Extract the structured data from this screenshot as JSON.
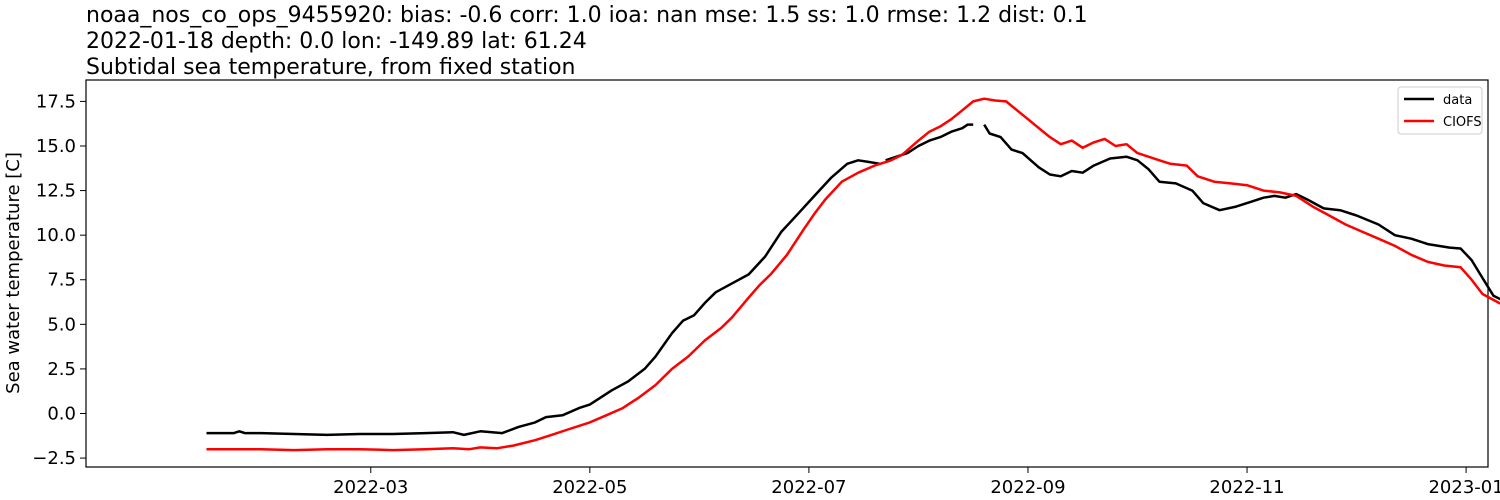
{
  "chart_data": {
    "type": "line",
    "title_lines": [
      "noaa_nos_co_ops_9455920: bias: -0.6  corr: 1.0  ioa: nan  mse: 1.5  ss: 1.0  rmse: 1.2  dist: 0.1",
      "2022-01-18 depth: 0.0 lon: -149.89 lat: 61.24",
      "Subtidal sea temperature, from fixed station"
    ],
    "xlabel": "",
    "ylabel": "Sea water temperature [C]",
    "x_ticks": [
      {
        "month": 2,
        "label": "2022-03"
      },
      {
        "month": 4,
        "label": "2022-05"
      },
      {
        "month": 6,
        "label": "2022-07"
      },
      {
        "month": 8,
        "label": "2022-09"
      },
      {
        "month": 10,
        "label": "2022-11"
      },
      {
        "month": 12,
        "label": "2023-01"
      }
    ],
    "x_range_months": [
      -0.6,
      12.2
    ],
    "y_ticks": [
      -2.5,
      0.0,
      2.5,
      5.0,
      7.5,
      10.0,
      12.5,
      15.0,
      17.5
    ],
    "ylim": [
      -3.0,
      18.7
    ],
    "grid": false,
    "legend_position": "top-right",
    "series": [
      {
        "name": "data",
        "color": "#000000",
        "segments": [
          [
            [
              0.5,
              -1.1
            ],
            [
              0.75,
              -1.1
            ],
            [
              0.8,
              -1.0
            ],
            [
              0.85,
              -1.1
            ],
            [
              1.0,
              -1.1
            ],
            [
              1.3,
              -1.15
            ],
            [
              1.6,
              -1.2
            ],
            [
              1.9,
              -1.15
            ],
            [
              2.2,
              -1.15
            ],
            [
              2.5,
              -1.1
            ],
            [
              2.75,
              -1.05
            ],
            [
              2.85,
              -1.2
            ],
            [
              3.0,
              -1.0
            ],
            [
              3.2,
              -1.1
            ],
            [
              3.35,
              -0.75
            ],
            [
              3.5,
              -0.5
            ],
            [
              3.6,
              -0.2
            ],
            [
              3.75,
              -0.1
            ],
            [
              3.9,
              0.3
            ],
            [
              4.0,
              0.5
            ],
            [
              4.1,
              0.9
            ],
            [
              4.2,
              1.3
            ],
            [
              4.35,
              1.8
            ],
            [
              4.5,
              2.5
            ],
            [
              4.6,
              3.2
            ],
            [
              4.75,
              4.5
            ],
            [
              4.85,
              5.2
            ],
            [
              4.95,
              5.5
            ],
            [
              5.05,
              6.2
            ],
            [
              5.15,
              6.8
            ],
            [
              5.3,
              7.3
            ],
            [
              5.45,
              7.8
            ],
            [
              5.6,
              8.8
            ],
            [
              5.75,
              10.2
            ],
            [
              5.9,
              11.2
            ],
            [
              6.05,
              12.2
            ],
            [
              6.2,
              13.2
            ],
            [
              6.35,
              14.0
            ],
            [
              6.45,
              14.2
            ],
            [
              6.55,
              14.1
            ],
            [
              6.65,
              14.0
            ]
          ],
          [
            [
              6.7,
              14.2
            ],
            [
              6.8,
              14.4
            ],
            [
              6.9,
              14.6
            ],
            [
              7.0,
              15.0
            ],
            [
              7.1,
              15.3
            ],
            [
              7.2,
              15.5
            ],
            [
              7.3,
              15.8
            ],
            [
              7.4,
              16.0
            ],
            [
              7.45,
              16.2
            ],
            [
              7.5,
              16.2
            ]
          ],
          [
            [
              7.6,
              16.2
            ],
            [
              7.65,
              15.7
            ],
            [
              7.75,
              15.5
            ],
            [
              7.85,
              14.8
            ],
            [
              7.95,
              14.6
            ],
            [
              8.1,
              13.8
            ],
            [
              8.2,
              13.4
            ],
            [
              8.3,
              13.3
            ],
            [
              8.4,
              13.6
            ],
            [
              8.5,
              13.5
            ],
            [
              8.6,
              13.9
            ],
            [
              8.75,
              14.3
            ],
            [
              8.9,
              14.4
            ],
            [
              9.0,
              14.2
            ],
            [
              9.1,
              13.7
            ],
            [
              9.2,
              13.0
            ],
            [
              9.35,
              12.9
            ],
            [
              9.5,
              12.5
            ],
            [
              9.6,
              11.8
            ],
            [
              9.75,
              11.4
            ],
            [
              9.9,
              11.6
            ],
            [
              10.05,
              11.9
            ],
            [
              10.15,
              12.1
            ],
            [
              10.25,
              12.2
            ],
            [
              10.35,
              12.1
            ],
            [
              10.45,
              12.3
            ],
            [
              10.55,
              12.0
            ],
            [
              10.7,
              11.5
            ],
            [
              10.85,
              11.4
            ],
            [
              11.0,
              11.1
            ],
            [
              11.2,
              10.6
            ],
            [
              11.35,
              10.0
            ],
            [
              11.5,
              9.8
            ],
            [
              11.65,
              9.5
            ],
            [
              11.75,
              9.4
            ],
            [
              11.85,
              9.3
            ],
            [
              11.95,
              9.25
            ],
            [
              12.05,
              8.6
            ],
            [
              12.15,
              7.6
            ],
            [
              12.25,
              6.6
            ],
            [
              12.35,
              6.3
            ],
            [
              12.45,
              6.1
            ],
            [
              12.6,
              6.0
            ],
            [
              12.7,
              5.3
            ],
            [
              12.8,
              4.4
            ],
            [
              12.9,
              3.3
            ],
            [
              13.0,
              2.6
            ],
            [
              13.1,
              1.5
            ],
            [
              13.2,
              0.4
            ],
            [
              13.3,
              -0.1
            ],
            [
              13.4,
              0.0
            ],
            [
              13.5,
              0.15
            ],
            [
              13.6,
              0.1
            ],
            [
              13.7,
              -0.05
            ],
            [
              13.8,
              0.0
            ],
            [
              13.9,
              0.1
            ],
            [
              14.0,
              0.0
            ],
            [
              14.1,
              -0.3
            ],
            [
              14.2,
              -0.7
            ],
            [
              14.4,
              -0.7
            ],
            [
              14.6,
              -0.8
            ],
            [
              14.8,
              -0.8
            ],
            [
              15.0,
              -0.8
            ],
            [
              15.2,
              -0.85
            ],
            [
              15.4,
              -0.9
            ]
          ]
        ]
      },
      {
        "name": "CIOFS",
        "color": "#ff0000",
        "segments": [
          [
            [
              0.5,
              -2.0
            ],
            [
              0.7,
              -2.0
            ],
            [
              1.0,
              -2.0
            ],
            [
              1.3,
              -2.05
            ],
            [
              1.6,
              -2.0
            ],
            [
              1.9,
              -2.0
            ],
            [
              2.2,
              -2.05
            ],
            [
              2.5,
              -2.0
            ],
            [
              2.75,
              -1.95
            ],
            [
              2.9,
              -2.0
            ],
            [
              3.0,
              -1.9
            ],
            [
              3.15,
              -1.95
            ],
            [
              3.3,
              -1.8
            ],
            [
              3.5,
              -1.5
            ],
            [
              3.65,
              -1.2
            ],
            [
              3.8,
              -0.9
            ],
            [
              4.0,
              -0.5
            ],
            [
              4.15,
              -0.1
            ],
            [
              4.3,
              0.3
            ],
            [
              4.45,
              0.9
            ],
            [
              4.6,
              1.6
            ],
            [
              4.75,
              2.5
            ],
            [
              4.9,
              3.2
            ],
            [
              5.05,
              4.1
            ],
            [
              5.2,
              4.8
            ],
            [
              5.3,
              5.4
            ],
            [
              5.45,
              6.5
            ],
            [
              5.55,
              7.2
            ],
            [
              5.65,
              7.8
            ],
            [
              5.8,
              8.9
            ],
            [
              5.95,
              10.3
            ],
            [
              6.05,
              11.2
            ],
            [
              6.15,
              12.0
            ],
            [
              6.3,
              13.0
            ],
            [
              6.45,
              13.5
            ],
            [
              6.6,
              13.9
            ],
            [
              6.75,
              14.2
            ],
            [
              6.85,
              14.5
            ],
            [
              7.0,
              15.3
            ],
            [
              7.1,
              15.8
            ],
            [
              7.2,
              16.1
            ],
            [
              7.3,
              16.5
            ],
            [
              7.4,
              17.0
            ],
            [
              7.5,
              17.5
            ],
            [
              7.6,
              17.65
            ],
            [
              7.7,
              17.55
            ],
            [
              7.8,
              17.5
            ],
            [
              7.9,
              17.0
            ],
            [
              8.0,
              16.5
            ],
            [
              8.1,
              16.0
            ],
            [
              8.2,
              15.5
            ],
            [
              8.3,
              15.1
            ],
            [
              8.4,
              15.3
            ],
            [
              8.5,
              14.9
            ],
            [
              8.6,
              15.2
            ],
            [
              8.7,
              15.4
            ],
            [
              8.8,
              15.0
            ],
            [
              8.9,
              15.1
            ],
            [
              9.0,
              14.6
            ],
            [
              9.1,
              14.4
            ],
            [
              9.2,
              14.2
            ],
            [
              9.3,
              14.0
            ],
            [
              9.45,
              13.9
            ],
            [
              9.55,
              13.3
            ],
            [
              9.7,
              13.0
            ],
            [
              9.85,
              12.9
            ],
            [
              10.0,
              12.8
            ],
            [
              10.15,
              12.5
            ],
            [
              10.3,
              12.4
            ],
            [
              10.45,
              12.2
            ],
            [
              10.6,
              11.6
            ],
            [
              10.75,
              11.1
            ],
            [
              10.9,
              10.6
            ],
            [
              11.05,
              10.2
            ],
            [
              11.2,
              9.8
            ],
            [
              11.35,
              9.4
            ],
            [
              11.5,
              8.9
            ],
            [
              11.65,
              8.5
            ],
            [
              11.8,
              8.3
            ],
            [
              11.95,
              8.2
            ],
            [
              12.05,
              7.5
            ],
            [
              12.15,
              6.7
            ],
            [
              12.3,
              6.2
            ],
            [
              12.45,
              5.8
            ],
            [
              12.6,
              5.5
            ],
            [
              12.7,
              4.8
            ],
            [
              12.85,
              3.6
            ],
            [
              12.95,
              2.5
            ],
            [
              13.05,
              1.4
            ],
            [
              13.15,
              0.6
            ],
            [
              13.25,
              -0.4
            ],
            [
              13.4,
              -0.9
            ],
            [
              13.55,
              -1.1
            ],
            [
              13.7,
              -1.4
            ],
            [
              13.85,
              -1.6
            ],
            [
              14.0,
              -1.9
            ],
            [
              14.2,
              -2.0
            ],
            [
              14.5,
              -2.0
            ],
            [
              15.0,
              -2.0
            ],
            [
              15.4,
              -2.0
            ]
          ]
        ]
      }
    ]
  }
}
